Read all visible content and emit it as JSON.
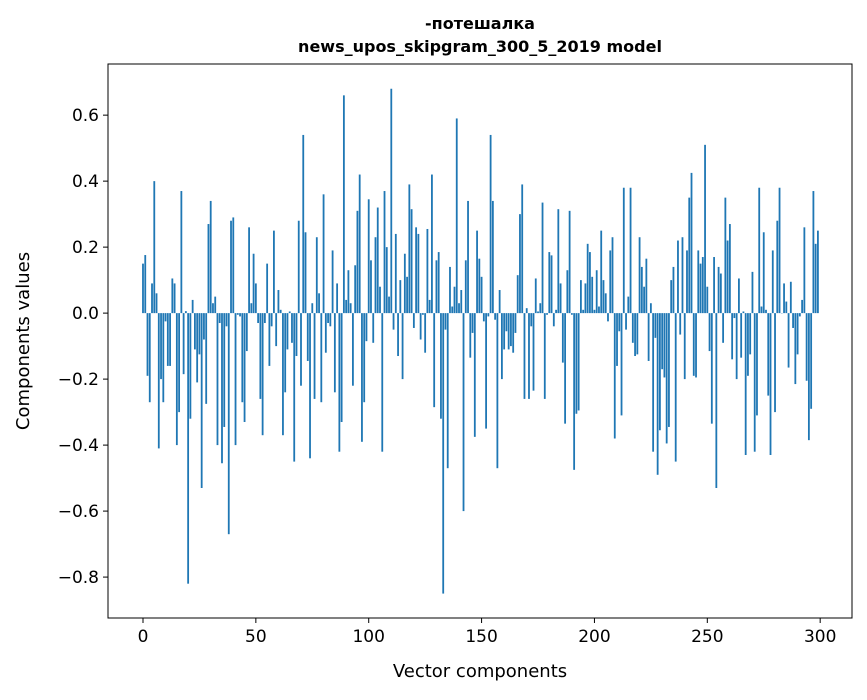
{
  "chart_data": {
    "type": "bar",
    "title": [
      "-потешалка",
      "news_upos_skipgram_300_5_2019 model"
    ],
    "xlabel": "Vector components",
    "ylabel": "Components values",
    "xlim": [
      -15.5,
      314.1
    ],
    "ylim": [
      -0.924,
      0.755
    ],
    "xticks": [
      0,
      50,
      100,
      150,
      200,
      250,
      300
    ],
    "yticks": [
      -0.8,
      -0.6,
      -0.4,
      -0.2,
      0.0,
      0.2,
      0.4,
      0.6
    ],
    "xtick_labels": [
      "0",
      "50",
      "100",
      "150",
      "200",
      "250",
      "300"
    ],
    "ytick_labels": [
      "−0.8",
      "−0.6",
      "−0.4",
      "−0.2",
      "0.0",
      "0.2",
      "0.4",
      "0.6"
    ],
    "grid": false,
    "bar_color": "#1f77b4",
    "values": [
      0.15,
      0.176,
      -0.19,
      -0.27,
      0.09,
      0.4,
      0.06,
      -0.41,
      -0.2,
      -0.27,
      -0.025,
      -0.16,
      -0.16,
      0.105,
      0.09,
      -0.4,
      -0.3,
      0.37,
      -0.185,
      0.006,
      -0.82,
      -0.32,
      0.04,
      -0.11,
      -0.21,
      -0.125,
      -0.53,
      -0.08,
      -0.275,
      0.27,
      0.34,
      0.03,
      0.05,
      -0.4,
      -0.03,
      -0.455,
      -0.345,
      -0.04,
      -0.67,
      0.28,
      0.29,
      -0.4,
      -0.005,
      -0.01,
      -0.27,
      -0.33,
      -0.115,
      0.26,
      0.03,
      0.18,
      0.09,
      -0.03,
      -0.26,
      -0.37,
      -0.03,
      0.15,
      -0.16,
      -0.04,
      0.25,
      -0.1,
      0.07,
      0.01,
      -0.37,
      -0.24,
      -0.11,
      0.005,
      -0.09,
      -0.45,
      -0.13,
      0.28,
      -0.22,
      0.54,
      0.245,
      -0.145,
      -0.44,
      0.03,
      -0.26,
      0.23,
      0.06,
      -0.27,
      0.36,
      -0.12,
      -0.03,
      -0.04,
      0.19,
      -0.24,
      0.09,
      -0.42,
      -0.33,
      0.66,
      0.04,
      0.13,
      0.03,
      -0.22,
      0.145,
      0.31,
      0.42,
      -0.39,
      -0.27,
      -0.085,
      0.345,
      0.16,
      -0.09,
      0.23,
      0.32,
      0.08,
      -0.42,
      0.37,
      0.2,
      0.05,
      0.68,
      -0.05,
      0.24,
      -0.13,
      0.1,
      -0.2,
      0.18,
      0.11,
      0.39,
      0.315,
      -0.045,
      0.26,
      0.24,
      -0.08,
      -0.005,
      -0.12,
      0.255,
      0.04,
      0.42,
      -0.285,
      0.16,
      0.185,
      -0.32,
      -0.85,
      -0.05,
      -0.47,
      0.14,
      0.02,
      0.08,
      0.59,
      0.03,
      0.07,
      -0.6,
      0.16,
      0.34,
      -0.135,
      -0.06,
      -0.375,
      0.25,
      0.165,
      0.11,
      -0.025,
      -0.35,
      -0.01,
      0.54,
      0.34,
      -0.02,
      -0.47,
      0.07,
      -0.2,
      -0.11,
      -0.055,
      -0.11,
      -0.1,
      -0.12,
      -0.06,
      0.115,
      0.3,
      0.39,
      -0.26,
      0.015,
      -0.26,
      -0.04,
      -0.235,
      0.105,
      0.005,
      0.03,
      0.335,
      -0.26,
      -0.005,
      0.185,
      0.175,
      -0.04,
      0.01,
      0.315,
      0.09,
      -0.15,
      -0.335,
      0.13,
      0.31,
      -0.005,
      -0.475,
      -0.305,
      -0.295,
      0.1,
      0.01,
      0.09,
      0.21,
      0.185,
      0.11,
      0.01,
      0.13,
      0.02,
      0.25,
      0.1,
      0.06,
      -0.025,
      0.19,
      0.23,
      -0.38,
      -0.16,
      -0.055,
      -0.31,
      0.38,
      -0.05,
      0.05,
      0.38,
      -0.09,
      -0.13,
      -0.125,
      0.23,
      0.14,
      0.08,
      0.165,
      -0.145,
      0.03,
      -0.42,
      -0.075,
      -0.49,
      -0.355,
      -0.17,
      -0.195,
      -0.395,
      -0.345,
      0.1,
      0.14,
      -0.45,
      0.22,
      -0.065,
      0.23,
      -0.2,
      0.19,
      0.35,
      0.425,
      -0.19,
      -0.195,
      0.19,
      0.15,
      0.17,
      0.51,
      0.08,
      -0.115,
      -0.335,
      0.17,
      -0.53,
      0.14,
      0.12,
      -0.09,
      0.35,
      0.22,
      0.27,
      -0.14,
      -0.015,
      -0.2,
      0.105,
      -0.135,
      0.005,
      -0.43,
      -0.19,
      -0.125,
      0.125,
      -0.42,
      -0.31,
      0.38,
      0.02,
      0.245,
      0.01,
      -0.25,
      -0.43,
      0.19,
      -0.3,
      0.28,
      0.38,
      0.0,
      0.09,
      0.035,
      -0.165,
      0.095,
      -0.045,
      -0.215,
      -0.125,
      -0.01,
      0.04,
      0.26,
      -0.205,
      -0.385,
      -0.29,
      0.37,
      0.21,
      0.25
    ]
  }
}
